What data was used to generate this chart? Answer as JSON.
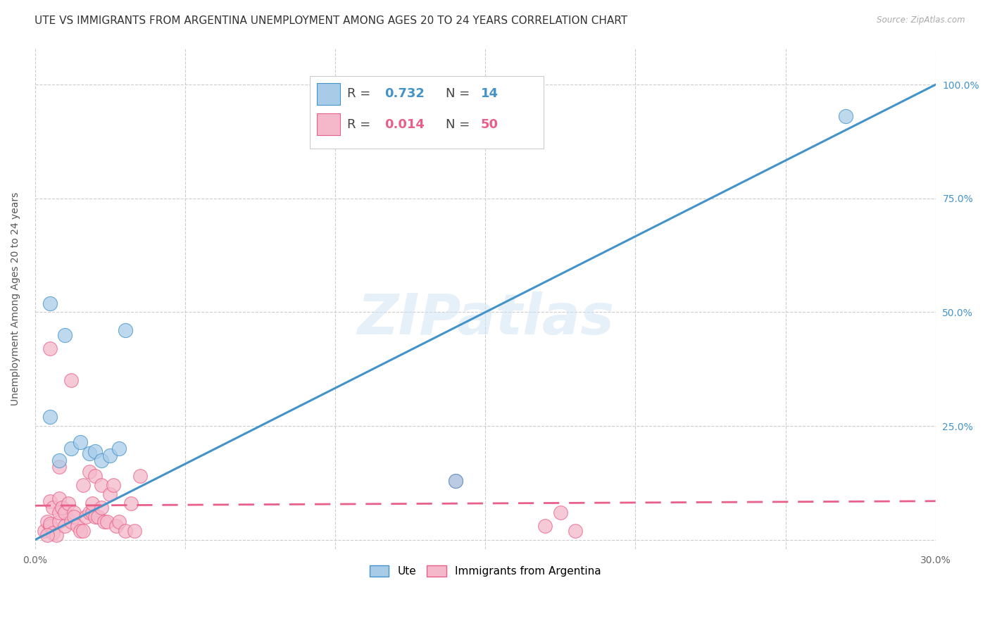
{
  "title": "UTE VS IMMIGRANTS FROM ARGENTINA UNEMPLOYMENT AMONG AGES 20 TO 24 YEARS CORRELATION CHART",
  "source": "Source: ZipAtlas.com",
  "ylabel": "Unemployment Among Ages 20 to 24 years",
  "xlim": [
    0.0,
    0.3
  ],
  "ylim": [
    -0.02,
    1.08
  ],
  "xticks": [
    0.0,
    0.05,
    0.1,
    0.15,
    0.2,
    0.25,
    0.3
  ],
  "xtick_labels": [
    "0.0%",
    "",
    "",
    "",
    "",
    "",
    "30.0%"
  ],
  "yticks": [
    0.0,
    0.25,
    0.5,
    0.75,
    1.0
  ],
  "ytick_labels": [
    "",
    "25.0%",
    "50.0%",
    "75.0%",
    "100.0%"
  ],
  "watermark": "ZIPatlas",
  "ute_color": "#a8cce8",
  "arg_color": "#f4b8ca",
  "ute_line_color": "#4393c9",
  "arg_line_color": "#e8608a",
  "ute_R": 0.732,
  "ute_N": 14,
  "arg_R": 0.014,
  "arg_N": 50,
  "ute_scatter_x": [
    0.005,
    0.008,
    0.012,
    0.015,
    0.018,
    0.02,
    0.022,
    0.025,
    0.028,
    0.03,
    0.005,
    0.01,
    0.14,
    0.27
  ],
  "ute_scatter_y": [
    0.27,
    0.175,
    0.2,
    0.215,
    0.19,
    0.195,
    0.175,
    0.185,
    0.2,
    0.46,
    0.52,
    0.45,
    0.13,
    0.93
  ],
  "arg_scatter_x": [
    0.003,
    0.004,
    0.005,
    0.005,
    0.005,
    0.006,
    0.006,
    0.007,
    0.008,
    0.008,
    0.008,
    0.009,
    0.01,
    0.01,
    0.011,
    0.012,
    0.013,
    0.013,
    0.014,
    0.015,
    0.016,
    0.016,
    0.017,
    0.018,
    0.018,
    0.019,
    0.019,
    0.02,
    0.02,
    0.021,
    0.022,
    0.022,
    0.023,
    0.024,
    0.025,
    0.026,
    0.027,
    0.028,
    0.03,
    0.032,
    0.033,
    0.035,
    0.005,
    0.008,
    0.012,
    0.14,
    0.17,
    0.175,
    0.18,
    0.004
  ],
  "arg_scatter_y": [
    0.02,
    0.04,
    0.03,
    0.085,
    0.035,
    0.07,
    0.015,
    0.01,
    0.04,
    0.09,
    0.06,
    0.07,
    0.03,
    0.06,
    0.08,
    0.04,
    0.06,
    0.05,
    0.03,
    0.02,
    0.02,
    0.12,
    0.05,
    0.06,
    0.15,
    0.06,
    0.08,
    0.05,
    0.14,
    0.05,
    0.07,
    0.12,
    0.04,
    0.04,
    0.1,
    0.12,
    0.03,
    0.04,
    0.02,
    0.08,
    0.02,
    0.14,
    0.42,
    0.16,
    0.35,
    0.13,
    0.03,
    0.06,
    0.02,
    0.01
  ],
  "background_color": "#ffffff",
  "grid_color": "#cccccc",
  "title_fontsize": 11,
  "axis_label_fontsize": 10,
  "tick_fontsize": 10,
  "legend_fontsize": 13,
  "ute_line_x0": 0.0,
  "ute_line_y0": 0.0,
  "ute_line_x1": 0.3,
  "ute_line_y1": 1.0,
  "arg_line_x0": 0.0,
  "arg_line_y0": 0.075,
  "arg_line_x1": 0.3,
  "arg_line_y1": 0.085
}
